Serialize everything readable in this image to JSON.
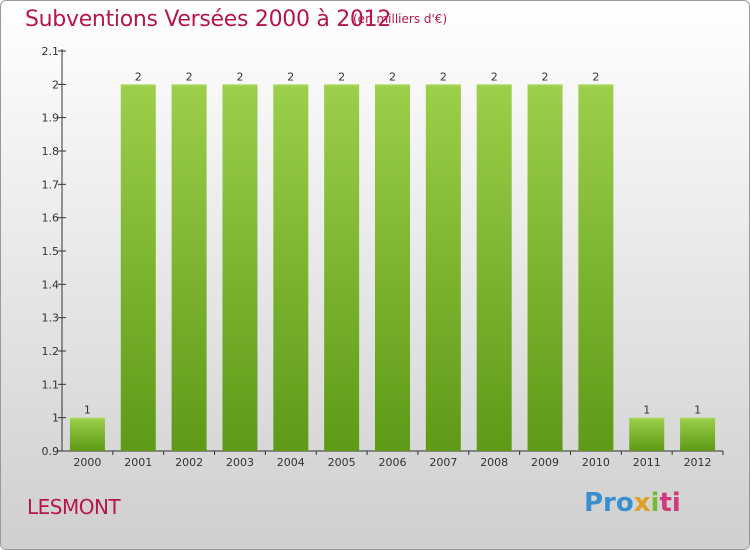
{
  "header": {
    "title": "Subventions Versées 2000 à 2012",
    "unit": "(en milliers d'€)"
  },
  "footer": {
    "place": "LESMONT",
    "logo_text": "Proxiti"
  },
  "colors": {
    "title": "#b5164b",
    "bar_light": "#9ccf4a",
    "bar_dark": "#5e9a16",
    "axis": "#333333"
  },
  "chart_data": {
    "type": "bar",
    "title": "Subventions Versées 2000 à 2012",
    "subtitle": "(en milliers d'€)",
    "categories": [
      "2000",
      "2001",
      "2002",
      "2003",
      "2004",
      "2005",
      "2006",
      "2007",
      "2008",
      "2009",
      "2010",
      "2011",
      "2012"
    ],
    "values": [
      1,
      2,
      2,
      2,
      2,
      2,
      2,
      2,
      2,
      2,
      2,
      1,
      1
    ],
    "data_labels": [
      "1",
      "2",
      "2",
      "2",
      "2",
      "2",
      "2",
      "2",
      "2",
      "2",
      "2",
      "1",
      "1"
    ],
    "ylim": [
      0.9,
      2.1
    ],
    "yticks": [
      0.9,
      1,
      1.1,
      1.2,
      1.3,
      1.4,
      1.5,
      1.6,
      1.7,
      1.8,
      1.9,
      2,
      2.1
    ],
    "ytick_labels": [
      "0.9",
      "1",
      "1.1",
      "1.2",
      "1.3",
      "1.4",
      "1.5",
      "1.6",
      "1.7",
      "1.8",
      "1.9",
      "2",
      "2.1"
    ],
    "xlabel": "",
    "ylabel": "",
    "grid": false,
    "legend": "none"
  }
}
